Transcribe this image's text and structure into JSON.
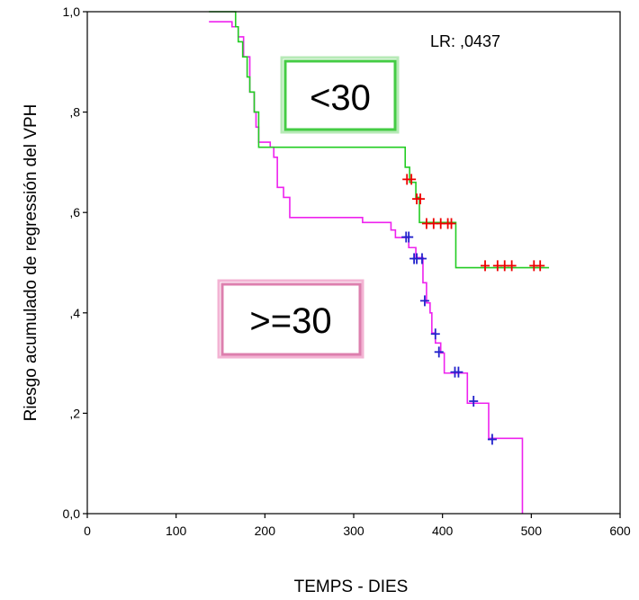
{
  "chart_data": {
    "type": "line",
    "title": "",
    "xlabel": "TEMPS - DIES",
    "ylabel": "Riesgo acumulado de regressión del VPH",
    "xlim": [
      0,
      600
    ],
    "ylim": [
      0,
      1
    ],
    "x_ticks": [
      0,
      100,
      200,
      300,
      400,
      500,
      600
    ],
    "x_tick_labels": [
      "0",
      "100",
      "200",
      "300",
      "400",
      "500",
      "600"
    ],
    "y_ticks": [
      0,
      0.2,
      0.4,
      0.6,
      0.8,
      1.0
    ],
    "y_tick_labels": [
      "0,0",
      ",2",
      ",4",
      ",6",
      ",8",
      "1,0"
    ],
    "grid": false,
    "annotation": "LR: ,0437",
    "series": [
      {
        "name": "<30",
        "color": "#22cc22",
        "censor_color": "#ee0000",
        "steps": [
          [
            137,
            1.0
          ],
          [
            167,
            0.97
          ],
          [
            170,
            0.94
          ],
          [
            175,
            0.91
          ],
          [
            180,
            0.87
          ],
          [
            183,
            0.84
          ],
          [
            188,
            0.8
          ],
          [
            193,
            0.73
          ],
          [
            358,
            0.69
          ],
          [
            363,
            0.66
          ],
          [
            370,
            0.63
          ],
          [
            374,
            0.58
          ],
          [
            415,
            0.49
          ],
          [
            520,
            0.49
          ]
        ],
        "censored": [
          [
            360,
            0.666
          ],
          [
            365,
            0.666
          ],
          [
            371,
            0.627
          ],
          [
            375,
            0.627
          ],
          [
            382,
            0.578
          ],
          [
            390,
            0.578
          ],
          [
            398,
            0.578
          ],
          [
            406,
            0.578
          ],
          [
            410,
            0.578
          ],
          [
            448,
            0.494
          ],
          [
            462,
            0.494
          ],
          [
            470,
            0.494
          ],
          [
            478,
            0.494
          ],
          [
            503,
            0.494
          ],
          [
            510,
            0.494
          ]
        ]
      },
      {
        "name": ">=30",
        "color": "#ee22ee",
        "censor_color": "#2222cc",
        "steps": [
          [
            137,
            0.98
          ],
          [
            163,
            0.97
          ],
          [
            170,
            0.95
          ],
          [
            176,
            0.91
          ],
          [
            183,
            0.84
          ],
          [
            188,
            0.8
          ],
          [
            190,
            0.77
          ],
          [
            193,
            0.74
          ],
          [
            206,
            0.73
          ],
          [
            210,
            0.71
          ],
          [
            214,
            0.65
          ],
          [
            221,
            0.63
          ],
          [
            228,
            0.59
          ],
          [
            310,
            0.58
          ],
          [
            342,
            0.565
          ],
          [
            347,
            0.55
          ],
          [
            362,
            0.53
          ],
          [
            370,
            0.51
          ],
          [
            378,
            0.46
          ],
          [
            382,
            0.42
          ],
          [
            386,
            0.4
          ],
          [
            388,
            0.36
          ],
          [
            392,
            0.34
          ],
          [
            398,
            0.32
          ],
          [
            402,
            0.28
          ],
          [
            428,
            0.22
          ],
          [
            452,
            0.15
          ],
          [
            490,
            0.0
          ]
        ],
        "censored": [
          [
            359,
            0.551
          ],
          [
            362,
            0.551
          ],
          [
            368,
            0.508
          ],
          [
            371,
            0.508
          ],
          [
            377,
            0.508
          ],
          [
            380,
            0.424
          ],
          [
            392,
            0.358
          ],
          [
            396,
            0.322
          ],
          [
            414,
            0.282
          ],
          [
            418,
            0.282
          ],
          [
            435,
            0.224
          ],
          [
            456,
            0.148
          ]
        ]
      }
    ],
    "legend": [
      {
        "label": "<30",
        "color": "#22cc22",
        "box_fill": "#ffffff"
      },
      {
        "label": ">=30",
        "color": "#ee66aa",
        "box_fill": "#ffffff"
      }
    ]
  }
}
